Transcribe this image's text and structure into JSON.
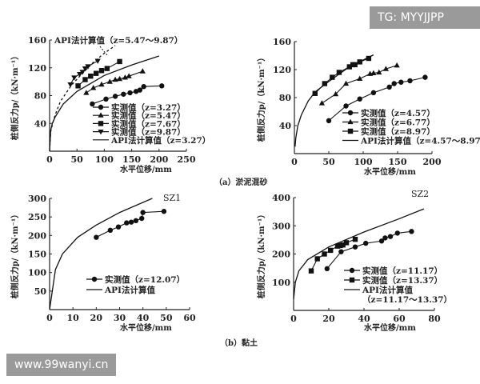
{
  "watermarks": {
    "top_right": "TG: MYYJJPP",
    "bottom_left": "www.99wanyi.cn"
  },
  "captions": {
    "a": "（a）淤泥混砂",
    "b": "（b）黏土"
  },
  "chart_data": [
    {
      "type": "line",
      "xlabel": "水平位移/mm",
      "ylabel": "桩侧反力p/（kN·m⁻¹）",
      "xlim": [
        0,
        250
      ],
      "ylim": [
        0,
        160
      ],
      "xticks": [
        0,
        50,
        100,
        150,
        200,
        250
      ],
      "yticks": [
        40,
        80,
        120,
        160
      ],
      "annotation": "API法计算值（z=5.47～9.87）",
      "series": [
        {
          "name": "实测值（z=3.27）",
          "marker": "circle",
          "x": [
            78,
            103,
            120,
            135,
            147,
            158,
            165,
            172,
            205
          ],
          "y": [
            68,
            75,
            79,
            82,
            84,
            86,
            88,
            93,
            94
          ]
        },
        {
          "name": "实测值（z=5.47）",
          "marker": "triangle",
          "x": [
            67,
            80,
            95,
            110,
            120,
            128,
            138,
            145,
            170
          ],
          "y": [
            84,
            91,
            96,
            100,
            103,
            104,
            106,
            108,
            115
          ]
        },
        {
          "name": "实测值（z=7.67）",
          "marker": "square",
          "x": [
            52,
            65,
            75,
            85,
            95,
            105,
            128
          ],
          "y": [
            94,
            103,
            108,
            112,
            116,
            119,
            129
          ]
        },
        {
          "name": "实测值（z=9.87）",
          "marker": "triangle-down",
          "x": [
            38,
            45,
            55,
            60,
            65,
            70,
            88
          ],
          "y": [
            96,
            106,
            111,
            114,
            119,
            122,
            130
          ]
        },
        {
          "name": "API法计算值（z=3.27）",
          "marker": "none",
          "x": [
            0,
            2,
            5,
            10,
            25,
            50,
            100,
            150,
            200
          ],
          "y": [
            0,
            30,
            40,
            49,
            68,
            86,
            109,
            124,
            137
          ]
        },
        {
          "name": "API法计算值（z=5.47～9.87）",
          "marker": "none",
          "dashed": true,
          "legend": false,
          "x": [
            0,
            2,
            5,
            10,
            20,
            40,
            60,
            80,
            100,
            120
          ],
          "y": [
            0,
            28,
            38,
            52,
            72,
            95,
            112,
            128,
            141,
            152
          ]
        }
      ]
    },
    {
      "type": "line",
      "xlabel": "水平位移/mm",
      "ylabel": "桩侧反力p/（kN·m⁻¹）",
      "xlim": [
        0,
        200
      ],
      "ylim": [
        0,
        160
      ],
      "xticks": [
        0,
        50,
        100,
        150,
        200
      ],
      "yticks": [
        40,
        80,
        120,
        160
      ],
      "series": [
        {
          "name": "实测值（z=4.57）",
          "marker": "circle",
          "x": [
            50,
            75,
            95,
            115,
            138,
            145,
            155,
            168,
            190
          ],
          "y": [
            47,
            68,
            78,
            87,
            95,
            100,
            102,
            104,
            109
          ]
        },
        {
          "name": "实测值（z=6.77）",
          "marker": "triangle",
          "x": [
            40,
            60,
            75,
            95,
            110,
            115,
            123,
            133,
            149
          ],
          "y": [
            72,
            85,
            100,
            107,
            114,
            115,
            116,
            121,
            126
          ]
        },
        {
          "name": "实测值（z=8.97）",
          "marker": "square",
          "x": [
            30,
            44,
            55,
            65,
            80,
            85,
            88,
            95,
            108
          ],
          "y": [
            86,
            100,
            109,
            116,
            124,
            127,
            127,
            131,
            136
          ]
        },
        {
          "name": "API法计算值（z=4.57～8.97）",
          "marker": "none",
          "x": [
            1,
            2,
            5,
            10,
            20,
            30,
            50,
            80,
            115
          ],
          "y": [
            10,
            22,
            40,
            55,
            75,
            88,
            103,
            124,
            141
          ]
        }
      ]
    },
    {
      "type": "line",
      "label": "SZ1",
      "xlabel": "水平位移/mm",
      "ylabel": "桩侧反力p/（kN·m⁻¹）",
      "xlim": [
        0,
        60
      ],
      "ylim": [
        0,
        300
      ],
      "xticks": [
        0,
        10,
        20,
        30,
        40,
        50,
        60
      ],
      "yticks": [
        50,
        100,
        150,
        200,
        250,
        300
      ],
      "series": [
        {
          "name": "实测值（z=12.07）",
          "marker": "circle",
          "x": [
            20,
            26,
            29.5,
            33,
            35,
            37,
            39.5,
            40,
            49
          ],
          "y": [
            195,
            214,
            223,
            234,
            236,
            240,
            246,
            262,
            265
          ]
        },
        {
          "name": "API法计算值",
          "marker": "none",
          "x": [
            0,
            2.5,
            5.5,
            12,
            20,
            30,
            44
          ],
          "y": [
            0,
            108,
            150,
            195,
            228,
            262,
            300
          ]
        }
      ]
    },
    {
      "type": "line",
      "label": "SZ2",
      "xlabel": "水平位移/mm",
      "ylabel": "桩侧反力p/（kN·m⁻¹）",
      "xlim": [
        0,
        80
      ],
      "ylim": [
        0,
        400
      ],
      "xticks": [
        0,
        20,
        40,
        60,
        80
      ],
      "yticks": [
        100,
        200,
        300,
        400
      ],
      "series": [
        {
          "name": "实测值（z=11.17）",
          "marker": "circle",
          "x": [
            19,
            27,
            35,
            41,
            50,
            52,
            55,
            59,
            67
          ],
          "y": [
            148,
            208,
            225,
            238,
            246,
            257,
            262,
            274,
            280
          ]
        },
        {
          "name": "实测值（z=13.37）",
          "marker": "square",
          "x": [
            10,
            13.5,
            17.5,
            21,
            25,
            26.5,
            28,
            30,
            35
          ],
          "y": [
            140,
            183,
            200,
            213,
            228,
            230,
            232,
            240,
            252
          ]
        },
        {
          "name": "API法计算值",
          "name2": "（z=11.17～13.37）",
          "marker": "none",
          "x": [
            0,
            1,
            3,
            8,
            20,
            40,
            60,
            74
          ],
          "y": [
            40,
            100,
            140,
            180,
            225,
            278,
            325,
            360
          ]
        }
      ]
    }
  ]
}
